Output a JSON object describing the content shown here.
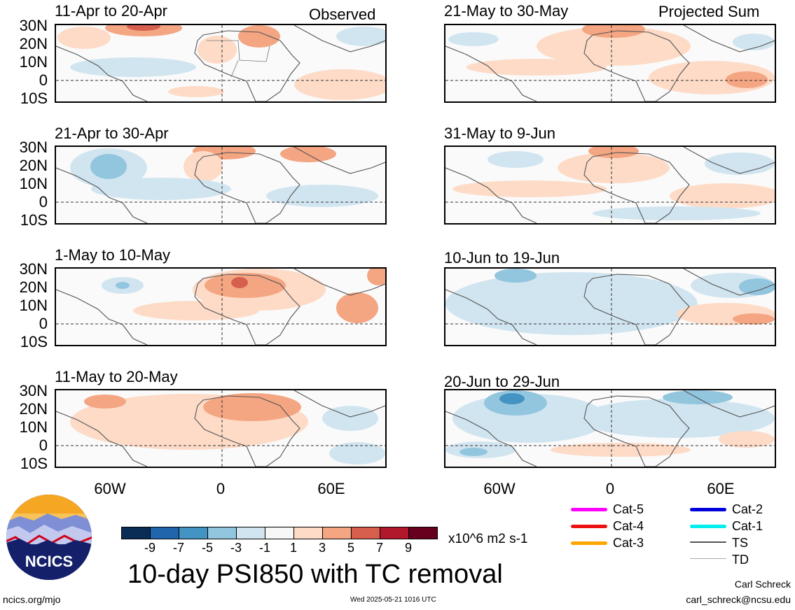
{
  "header": {
    "left_label": "Observed",
    "right_label": "Projected Sum"
  },
  "panels": [
    {
      "title": "11-Apr to 20-Apr"
    },
    {
      "title": "21-Apr to 30-Apr"
    },
    {
      "title": "1-May to 10-May"
    },
    {
      "title": "11-May to 20-May"
    },
    {
      "title": "21-May to 30-May"
    },
    {
      "title": "31-May to 9-Jun"
    },
    {
      "title": "10-Jun to 19-Jun"
    },
    {
      "title": "20-Jun to 29-Jun"
    }
  ],
  "axes": {
    "lat_labels": [
      "30N",
      "20N",
      "10N",
      "0",
      "10S"
    ],
    "lon_labels": [
      "60W",
      "0",
      "60E"
    ]
  },
  "colorbar": {
    "colors": [
      "#0a2d56",
      "#2166ac",
      "#4393c3",
      "#92c5de",
      "#d1e5f0",
      "#f7f7f7",
      "#fddbc7",
      "#f4a582",
      "#d6604d",
      "#b2182b",
      "#67001f"
    ],
    "ticks": [
      "-9",
      "-7",
      "-5",
      "-3",
      "-1",
      "1",
      "3",
      "5",
      "7",
      "9"
    ],
    "units": "x10^6 m2 s-1"
  },
  "main_title": "10-day PSI850 with TC removal",
  "tc_legend": [
    {
      "label": "Cat-5",
      "color": "#ff00ff"
    },
    {
      "label": "Cat-4",
      "color": "#ee1111"
    },
    {
      "label": "Cat-3",
      "color": "#ffa500"
    },
    {
      "label": "Cat-2",
      "color": "#0000dd"
    },
    {
      "label": "Cat-1",
      "color": "#00eeee"
    },
    {
      "label": "TS",
      "color": "#555555"
    },
    {
      "label": "TD",
      "color": "#aaaaaa"
    }
  ],
  "footer": {
    "left": "ncics.org/mjo",
    "center": "Wed 2025-05-21 1016 UTC",
    "author": "Carl Schreck",
    "email": "carl_schreck@ncsu.edu"
  },
  "logo": {
    "text": "NCICS"
  }
}
